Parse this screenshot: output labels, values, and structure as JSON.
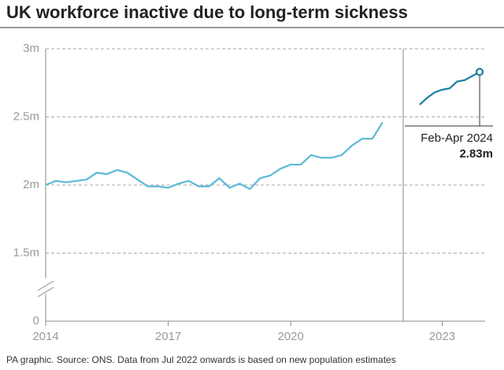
{
  "title": "UK workforce inactive due to long-term sickness",
  "source": "PA graphic. Source: ONS. Data from Jul 2022 onwards is based on new population estimates",
  "chart_data": [
    {
      "type": "line",
      "color": "#5bb8d8",
      "ylim": [
        0,
        3
      ],
      "y_axis_break": [
        0,
        1
      ],
      "yticks": [
        0,
        {
          "value": 1.5,
          "label": "1.5m"
        },
        {
          "value": 2,
          "label": "2m"
        },
        {
          "value": 2.5,
          "label": "2.5m"
        },
        {
          "value": 3,
          "label": "3m"
        }
      ],
      "xlim": [
        2014,
        2022.6
      ],
      "xticks": [
        2014,
        2017,
        2020
      ],
      "grid": true,
      "x": [
        2014,
        2014.25,
        2014.5,
        2014.75,
        2015,
        2015.25,
        2015.5,
        2015.75,
        2016,
        2016.25,
        2016.5,
        2016.75,
        2017,
        2017.25,
        2017.5,
        2017.75,
        2018,
        2018.25,
        2018.5,
        2018.75,
        2019,
        2019.25,
        2019.5,
        2019.75,
        2020,
        2020.25,
        2020.5,
        2020.75,
        2021,
        2021.25,
        2021.5,
        2021.75,
        2022,
        2022.25
      ],
      "values": [
        2.0,
        2.03,
        2.02,
        2.03,
        2.04,
        2.09,
        2.08,
        2.11,
        2.09,
        2.04,
        1.99,
        1.99,
        1.98,
        2.01,
        2.03,
        1.99,
        1.99,
        2.05,
        1.98,
        2.01,
        1.97,
        2.05,
        2.07,
        2.12,
        2.15,
        2.15,
        2.22,
        2.2,
        2.2,
        2.22,
        2.29,
        2.34,
        2.34,
        2.46
      ]
    },
    {
      "type": "line",
      "color": "#1a7fa0",
      "ylim": [
        0,
        3
      ],
      "y_axis_break": [
        0,
        1
      ],
      "xlim": [
        2021.7,
        2024.8
      ],
      "xticks": [
        2023
      ],
      "x": [
        2022.25,
        2022.5,
        2022.75,
        2023,
        2023.25,
        2023.5,
        2023.75,
        2024,
        2024.25
      ],
      "values": [
        2.59,
        2.64,
        2.68,
        2.7,
        2.71,
        2.76,
        2.77,
        2.8,
        2.83
      ],
      "value_labels": [
        null,
        null,
        null,
        null,
        null,
        null,
        null,
        null,
        "2.83m"
      ],
      "annotation": "Feb-Apr 2024"
    }
  ]
}
